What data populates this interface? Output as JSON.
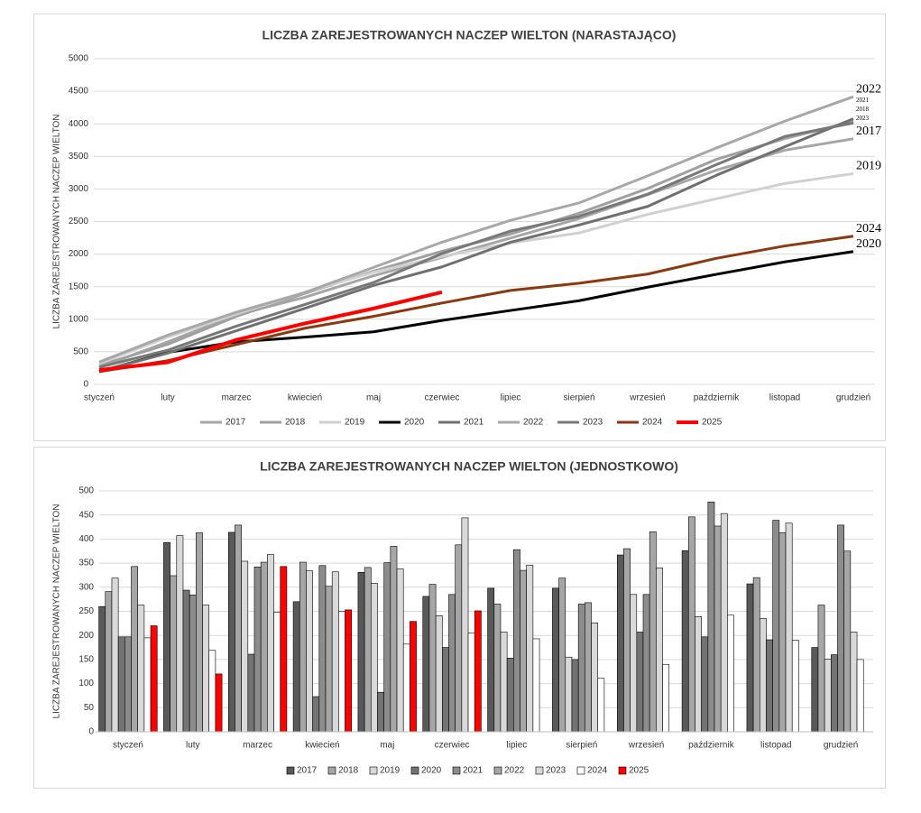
{
  "chart_data": [
    {
      "type": "line",
      "title": "LICZBA ZAREJESTROWANYCH NACZEP WIELTON (NARASTAJĄCO)",
      "ylabel": "LICZBA ZAREJESTROWANYCH NACZEP WIELTON",
      "categories": [
        "styczeń",
        "luty",
        "marzec",
        "kwiecień",
        "maj",
        "czerwiec",
        "lipiec",
        "sierpień",
        "wrzesień",
        "październik",
        "listopad",
        "grudzień"
      ],
      "ylim": [
        0,
        5000
      ],
      "yticks": [
        0,
        500,
        1000,
        1500,
        2000,
        2500,
        3000,
        3500,
        4000,
        4500,
        5000
      ],
      "grid": true,
      "legend": "bottom",
      "series": [
        {
          "name": "2017",
          "color": "#a6a6a6",
          "values": [
            260,
            653,
            1067,
            1337,
            1668,
            1949,
            2247,
            2545,
            2912,
            3288,
            3595,
            3770
          ]
        },
        {
          "name": "2018",
          "color": "#a0a0a0",
          "values": [
            291,
            615,
            1044,
            1396,
            1737,
            2043,
            2308,
            2627,
            3007,
            3453,
            3773,
            4036
          ]
        },
        {
          "name": "2019",
          "color": "#d0d0d0",
          "values": [
            319,
            726,
            1080,
            1414,
            1722,
            1963,
            2170,
            2325,
            2610,
            2849,
            3084,
            3235
          ]
        },
        {
          "name": "2020",
          "color": "#000000",
          "values": [
            197,
            491,
            652,
            725,
            807,
            982,
            1135,
            1285,
            1492,
            1689,
            1880,
            2040
          ]
        },
        {
          "name": "2021",
          "color": "#707070",
          "values": [
            197,
            481,
            823,
            1168,
            1519,
            1804,
            2182,
            2447,
            2732,
            3209,
            3648,
            4077
          ]
        },
        {
          "name": "2022",
          "color": "#a8a8a8",
          "values": [
            343,
            756,
            1108,
            1410,
            1795,
            2183,
            2518,
            2786,
            3201,
            3628,
            4041,
            4416
          ]
        },
        {
          "name": "2023",
          "color": "#787878",
          "values": [
            263,
            526,
            894,
            1226,
            1564,
            2008,
            2354,
            2580,
            2920,
            3373,
            3806,
            4013
          ]
        },
        {
          "name": "2024",
          "color": "#8b3a0f",
          "values": [
            195,
            364,
            612,
            862,
            1044,
            1249,
            1442,
            1553,
            1693,
            1935,
            2125,
            2275
          ]
        },
        {
          "name": "2025",
          "color": "#ff0000",
          "values": [
            220,
            340,
            683,
            936,
            1165,
            1416,
            null,
            null,
            null,
            null,
            null,
            null
          ]
        }
      ]
    },
    {
      "type": "bar",
      "title": "LICZBA ZAREJESTROWANYCH NACZEP WIELTON (JEDNOSTKOWO)",
      "ylabel": "LICZBA ZAREJESTROWANYCH NACZEP WIELTON",
      "categories": [
        "styczeń",
        "luty",
        "marzec",
        "kwiecień",
        "maj",
        "czerwiec",
        "lipiec",
        "sierpień",
        "wrzesień",
        "październik",
        "listopad",
        "grudzień"
      ],
      "ylim": [
        0,
        500
      ],
      "yticks": [
        0,
        50,
        100,
        150,
        200,
        250,
        300,
        350,
        400,
        450,
        500
      ],
      "grid": true,
      "legend": "bottom",
      "series": [
        {
          "name": "2017",
          "color": "#595959",
          "values": [
            260,
            393,
            414,
            270,
            331,
            281,
            298,
            298,
            367,
            376,
            307,
            175
          ]
        },
        {
          "name": "2018",
          "color": "#a6a6a6",
          "values": [
            291,
            324,
            429,
            352,
            341,
            306,
            265,
            319,
            380,
            446,
            320,
            263
          ]
        },
        {
          "name": "2019",
          "color": "#d9d9d9",
          "values": [
            319,
            407,
            354,
            334,
            308,
            241,
            207,
            155,
            285,
            239,
            235,
            151
          ]
        },
        {
          "name": "2020",
          "color": "#737373",
          "values": [
            197,
            294,
            161,
            73,
            82,
            175,
            153,
            150,
            207,
            197,
            191,
            160
          ]
        },
        {
          "name": "2021",
          "color": "#8c8c8c",
          "values": [
            197,
            284,
            342,
            345,
            351,
            285,
            378,
            265,
            285,
            477,
            439,
            429
          ]
        },
        {
          "name": "2022",
          "color": "#a6a6a6",
          "values": [
            343,
            413,
            352,
            302,
            385,
            388,
            335,
            268,
            415,
            427,
            413,
            375
          ]
        },
        {
          "name": "2023",
          "color": "#d9d9d9",
          "values": [
            263,
            263,
            368,
            332,
            338,
            444,
            346,
            226,
            340,
            453,
            433,
            207
          ]
        },
        {
          "name": "2024",
          "color": "#ffffff",
          "values": [
            195,
            169,
            248,
            250,
            182,
            205,
            193,
            111,
            140,
            242,
            190,
            150
          ]
        },
        {
          "name": "2025",
          "color": "#ff0000",
          "values": [
            220,
            120,
            343,
            253,
            229,
            251,
            null,
            null,
            null,
            null,
            null,
            null
          ]
        }
      ]
    }
  ]
}
